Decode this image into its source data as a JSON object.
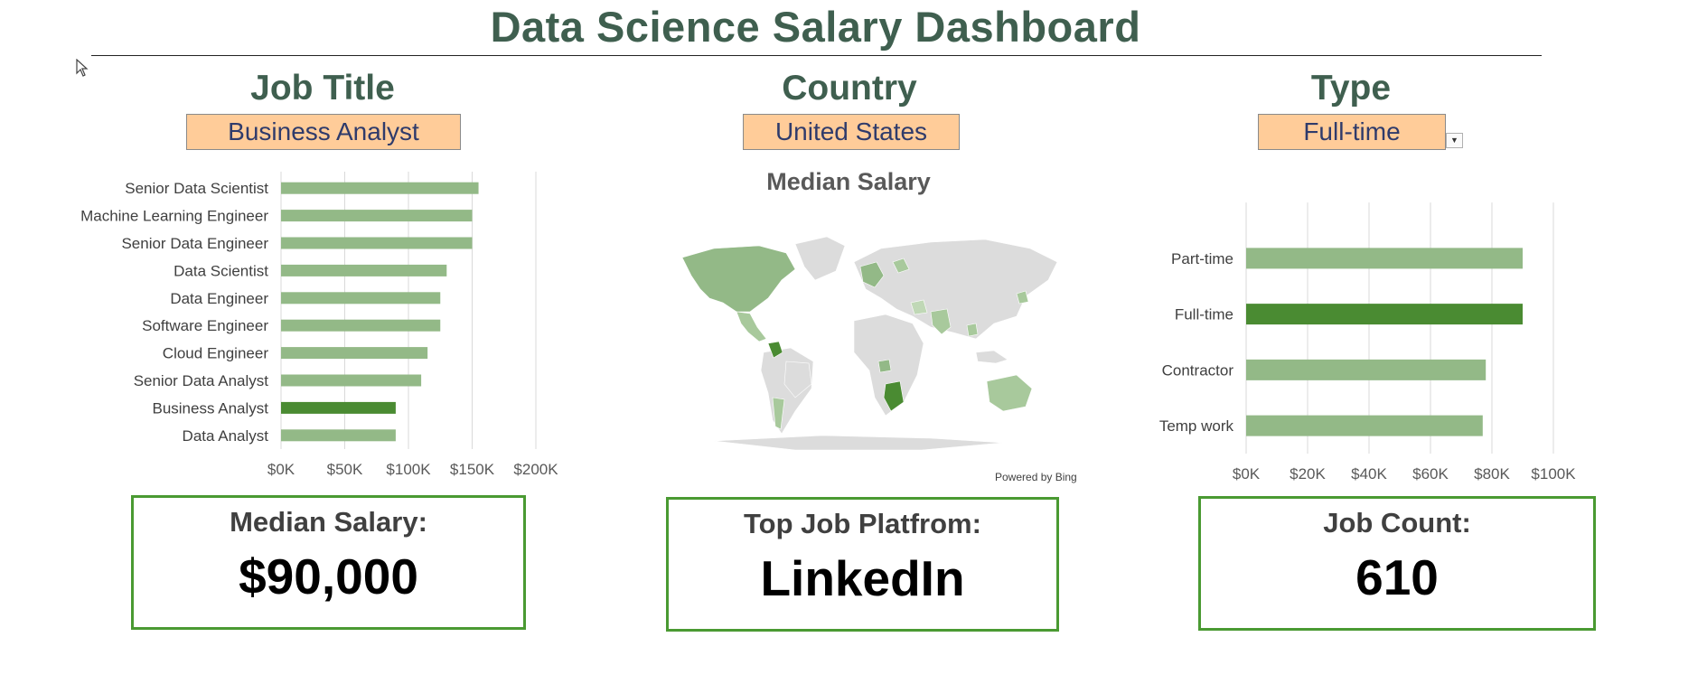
{
  "dashboard": {
    "title": "Data Science Salary Dashboard"
  },
  "filters": {
    "job_title": {
      "label": "Job Title",
      "value": "Business Analyst"
    },
    "country": {
      "label": "Country",
      "value": "United States"
    },
    "type": {
      "label": "Type",
      "value": "Full-time"
    }
  },
  "colors": {
    "bar": "#93b987",
    "bar_selected": "#4a8b32",
    "title": "#3f5f4f",
    "slicer": "#ffcc99",
    "kpi_border": "#4a9a32"
  },
  "map": {
    "title": "Median Salary",
    "credit": "Powered by Bing"
  },
  "kpis": {
    "median_salary": {
      "label": "Median Salary:",
      "value": "$90,000"
    },
    "top_platform": {
      "label": "Top Job Platfrom:",
      "value": "LinkedIn"
    },
    "job_count": {
      "label": "Job Count:",
      "value": "610"
    }
  },
  "chart_data": [
    {
      "type": "bar",
      "orientation": "horizontal",
      "categories": [
        "Senior Data Scientist",
        "Machine Learning Engineer",
        "Senior Data Engineer",
        "Data Scientist",
        "Data Engineer",
        "Software Engineer",
        "Cloud Engineer",
        "Senior Data Analyst",
        "Business Analyst",
        "Data Analyst"
      ],
      "values": [
        155000,
        150000,
        150000,
        130000,
        125000,
        125000,
        115000,
        110000,
        90000,
        90000
      ],
      "highlight": "Business Analyst",
      "xlim": [
        0,
        200000
      ],
      "xticks": [
        "$0K",
        "$50K",
        "$100K",
        "$150K",
        "$200K"
      ],
      "grid": true
    },
    {
      "type": "bar",
      "orientation": "horizontal",
      "categories": [
        "Part-time",
        "Full-time",
        "Contractor",
        "Temp work"
      ],
      "values": [
        90000,
        90000,
        78000,
        77000
      ],
      "highlight": "Full-time",
      "xlim": [
        0,
        100000
      ],
      "xticks": [
        "$0K",
        "$20K",
        "$40K",
        "$60K",
        "$80K",
        "$100K"
      ],
      "grid": true
    }
  ]
}
